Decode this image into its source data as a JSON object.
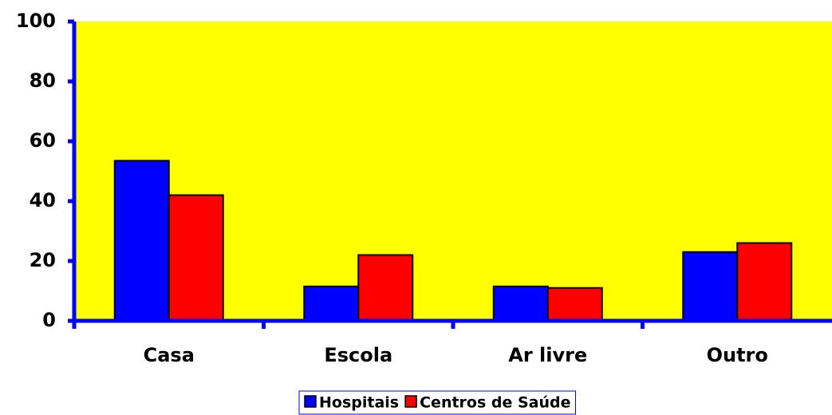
{
  "chart_data": {
    "type": "bar",
    "categories": [
      "Casa",
      "Escola",
      "Ar livre",
      "Outro"
    ],
    "series": [
      {
        "name": "Hospitais",
        "color": "#0000ff",
        "values": [
          53.5,
          11.5,
          11.5,
          23
        ]
      },
      {
        "name": "Centros de Saúde",
        "color": "#ff0000",
        "values": [
          42,
          22,
          11,
          26
        ]
      }
    ],
    "ylim": [
      0,
      100
    ],
    "yticks": [
      0,
      20,
      40,
      60,
      80,
      100
    ],
    "plot_background": "#ffff00",
    "axis_color": "#0000ff",
    "legend": "bottom"
  }
}
